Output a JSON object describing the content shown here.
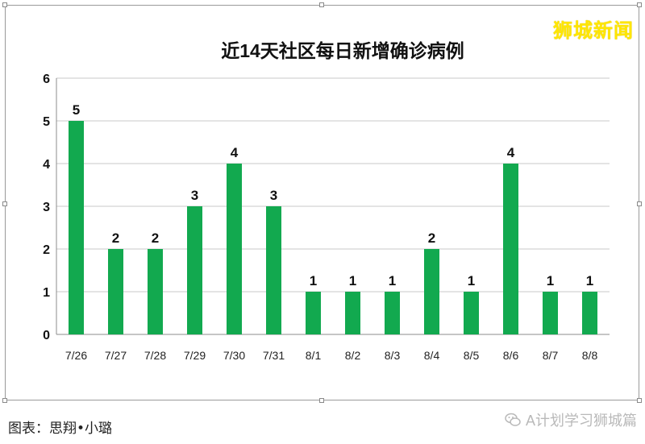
{
  "brand": "狮城新闻",
  "chart_data": {
    "type": "bar",
    "title": "近14天社区每日新增确诊病例",
    "xlabel": "",
    "ylabel": "",
    "categories": [
      "7/26",
      "7/27",
      "7/28",
      "7/29",
      "7/30",
      "7/31",
      "8/1",
      "8/2",
      "8/3",
      "8/4",
      "8/5",
      "8/6",
      "8/7",
      "8/8"
    ],
    "values": [
      5,
      2,
      2,
      3,
      4,
      3,
      1,
      1,
      1,
      2,
      1,
      4,
      1,
      1
    ],
    "ylim": [
      0,
      6
    ],
    "yticks": [
      "0",
      "1",
      "2",
      "3",
      "4",
      "5",
      "6"
    ],
    "bar_color": "#12a94f",
    "grid": true,
    "data_labels": true
  },
  "credit": "图表：思翔•小璐",
  "watermark": "A计划学习狮城篇"
}
